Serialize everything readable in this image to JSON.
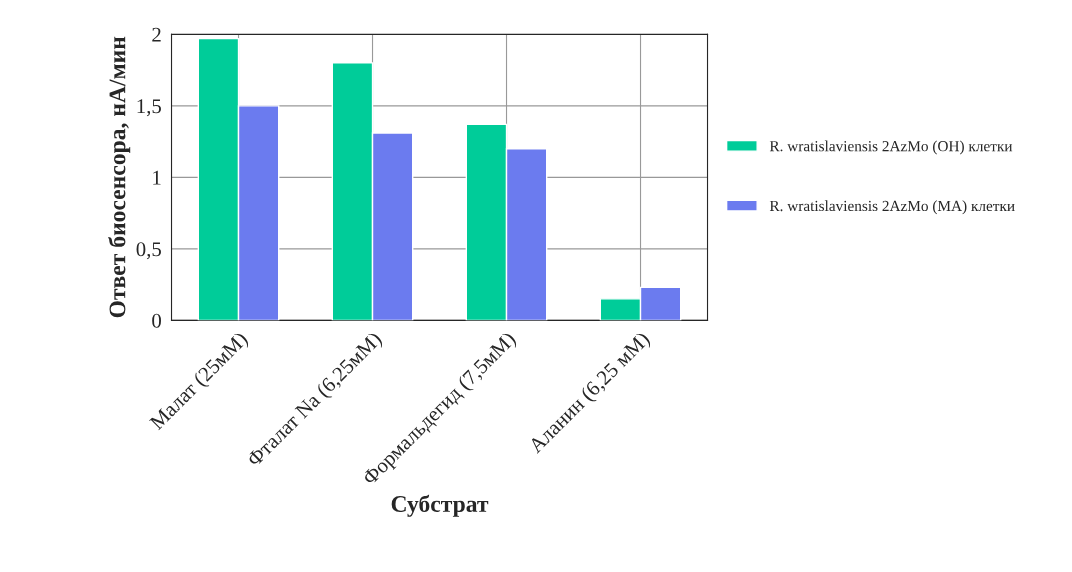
{
  "chart_data": {
    "type": "bar",
    "xlabel": "Субстрат",
    "ylabel": "Ответ биосенсора, нА/мин",
    "categories": [
      "Малат (25мМ)",
      "Фталат Na (6,25мМ)",
      "Формальдегид (7,5мМ)",
      "Аланин (6,25 мМ)"
    ],
    "series": [
      {
        "name": "R. wratislaviensis 2AzMo (OH) клетки",
        "color": "#00cc99",
        "values": [
          1.97,
          1.8,
          1.37,
          0.15
        ]
      },
      {
        "name": "R. wratislaviensis 2AzMo (MA) клетки",
        "color": "#6b7bef",
        "values": [
          1.5,
          1.31,
          1.2,
          0.23
        ]
      }
    ],
    "ylim": [
      0,
      2
    ],
    "yticks": [
      0,
      {
        "value": 0.5,
        "label": "0,5"
      },
      1,
      {
        "value": 1.5,
        "label": "1,5"
      },
      2
    ],
    "grid": true,
    "legend": "right"
  }
}
